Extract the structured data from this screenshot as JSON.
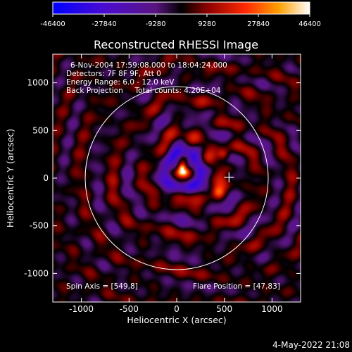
{
  "chart_data": {
    "type": "heatmap",
    "title": "Reconstructed RHESSI Image",
    "xlabel": "Heliocentric X (arcsec)",
    "ylabel": "Heliocentric Y (arcsec)",
    "xlim": [
      -1300,
      1300
    ],
    "ylim": [
      -1300,
      1300
    ],
    "xticks": [
      -1000,
      -500,
      0,
      500,
      1000
    ],
    "yticks": [
      -1000,
      -500,
      0,
      500,
      1000
    ],
    "colorbar": {
      "min": -46400,
      "max": 46400,
      "ticks": [
        -46400,
        -27840,
        -9280,
        9280,
        27840,
        46400
      ]
    },
    "info_lines": [
      "6-Nov-2004 17:59:08.000 to 18:04:24.000",
      "Detectors: 7F 8F 9F, Att 0",
      "Energy Range: 6.0 - 12.0 keV",
      "Back Projection     Total counts: 4.20E+04"
    ],
    "spin_axis_text": "Spin Axis = [549,8]",
    "flare_position_text": "Flare Position = [47,83]",
    "solar_limb": {
      "center": [
        0,
        0
      ],
      "radius": 960
    },
    "main_source": {
      "x": 60,
      "y": 80,
      "peak": 46400
    },
    "spin_axis": {
      "x": 549,
      "y": 8
    },
    "secondary_sources": [
      {
        "x": 490,
        "y": 250,
        "value": 27000
      },
      {
        "x": 440,
        "y": -150,
        "value": 25000
      }
    ]
  },
  "timestamp": "4-May-2022 21:08"
}
